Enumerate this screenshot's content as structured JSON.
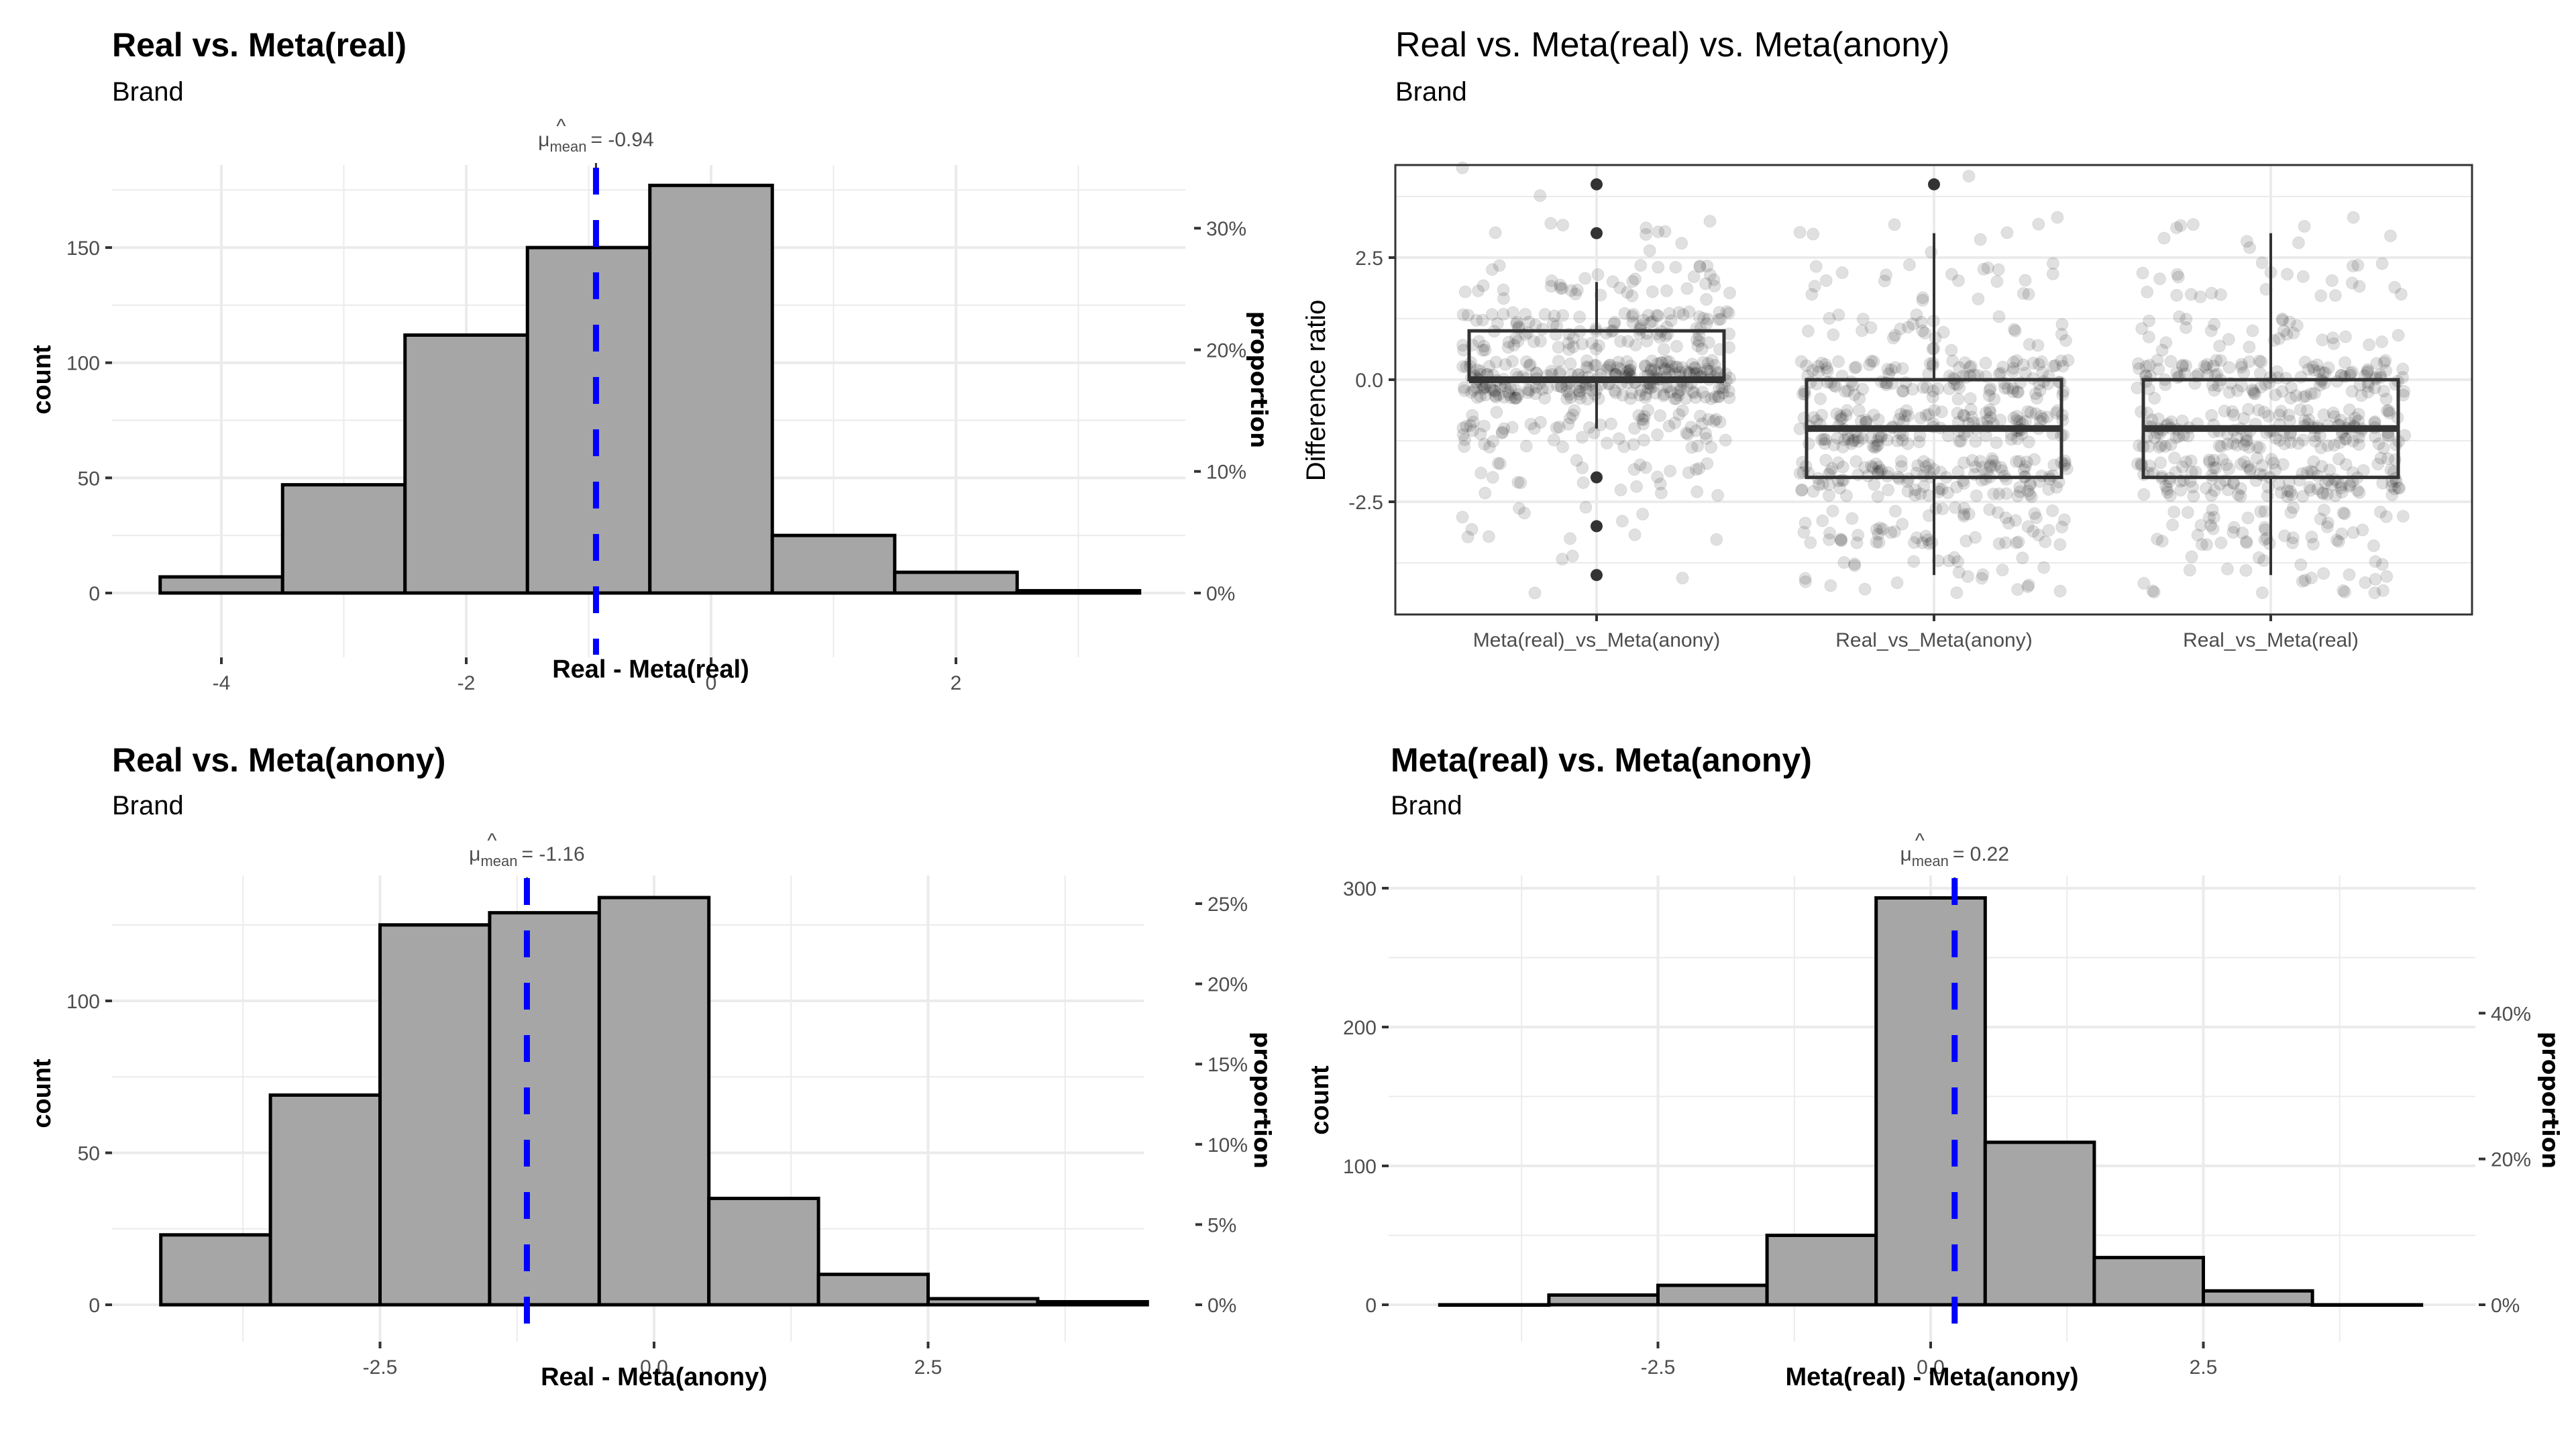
{
  "colors": {
    "bar_fill": "#a6a6a6",
    "bar_outline": "#000000",
    "mean_line": "#0000ff",
    "grid": "#ebebeb",
    "text_muted": "#4d4d4d",
    "point": "#000000"
  },
  "chart_data": [
    {
      "id": "hist-real-vs-meta-real",
      "type": "bar",
      "title": "Real vs. Meta(real)",
      "subtitle": "Brand",
      "xlabel": "Real - Meta(real)",
      "ylabel": "count",
      "ylabel_secondary": "proportion",
      "bin_centers": [
        -4,
        -3,
        -2,
        -1,
        0,
        1,
        2,
        3
      ],
      "values": [
        7,
        47,
        112,
        150,
        177,
        25,
        9,
        1
      ],
      "bin_width": 1,
      "xlim": [
        -4.9,
        3.9
      ],
      "ylim": [
        0,
        185
      ],
      "x_ticks": [
        -4,
        -2,
        0,
        2
      ],
      "x_tick_labels": [
        "-4",
        "-2",
        "0",
        "2"
      ],
      "y_ticks": [
        0,
        50,
        100,
        150
      ],
      "y_tick_labels": [
        "0",
        "50",
        "100",
        "150"
      ],
      "y2_ticks": [
        0,
        0.1,
        0.2,
        0.3
      ],
      "y2_tick_labels": [
        "0%",
        "10%",
        "20%",
        "30%"
      ],
      "mean": -0.94,
      "mean_label_value": "= -0.94",
      "mean_label_symbol": "μ",
      "mean_label_sub": "mean",
      "grid": true
    },
    {
      "id": "boxplot-difference-ratio",
      "type": "box",
      "title": "Real vs. Meta(real) vs. Meta(anony)",
      "subtitle": "Brand",
      "xlabel": "",
      "ylabel": "Difference ratio",
      "categories": [
        "Meta(real)_vs_Meta(anony)",
        "Real_vs_Meta(anony)",
        "Real_vs_Meta(real)"
      ],
      "boxes": [
        {
          "q1": 0,
          "median": 0,
          "q3": 1,
          "whisker_low": -1,
          "whisker_high": 2,
          "outliers": [
            4,
            3,
            -2,
            -3,
            -4
          ]
        },
        {
          "q1": -2,
          "median": -1,
          "q3": 0,
          "whisker_low": -4,
          "whisker_high": 3,
          "outliers": [
            4
          ]
        },
        {
          "q1": -2,
          "median": -1,
          "q3": 0,
          "whisker_low": -4,
          "whisker_high": 3,
          "outliers": []
        }
      ],
      "jitter_points": "semi-transparent jittered points per group (approx. 528 each)",
      "ylim": [
        -4.6,
        4.5
      ],
      "y_ticks": [
        -2.5,
        0.0,
        2.5
      ],
      "y_tick_labels": [
        "-2.5",
        "0.0",
        "2.5"
      ],
      "grid": true
    },
    {
      "id": "hist-real-vs-meta-anony",
      "type": "bar",
      "title": "Real vs. Meta(anony)",
      "subtitle": "Brand",
      "xlabel": "Real - Meta(anony)",
      "ylabel": "count",
      "ylabel_secondary": "proportion",
      "bin_centers": [
        -4,
        -3,
        -2,
        -1,
        0,
        1,
        2,
        3,
        4
      ],
      "values": [
        23,
        69,
        125,
        129,
        134,
        35,
        10,
        2,
        1
      ],
      "bin_width": 1,
      "xlim": [
        -4.9,
        4.9
      ],
      "ylim": [
        0,
        142
      ],
      "x_ticks": [
        -2.5,
        0.0,
        2.5
      ],
      "x_tick_labels": [
        "-2.5",
        "0.0",
        "2.5"
      ],
      "y_ticks": [
        0,
        50,
        100
      ],
      "y_tick_labels": [
        "0",
        "50",
        "100"
      ],
      "y2_ticks": [
        0,
        0.05,
        0.1,
        0.15,
        0.2,
        0.25
      ],
      "y2_tick_labels": [
        "0%",
        "5%",
        "10%",
        "15%",
        "20%",
        "25%"
      ],
      "mean": -1.16,
      "mean_label_value": "= -1.16",
      "mean_label_symbol": "μ",
      "mean_label_sub": "mean",
      "grid": true
    },
    {
      "id": "hist-meta-real-vs-meta-anony",
      "type": "bar",
      "title": "Meta(real) vs. Meta(anony)",
      "subtitle": "Brand",
      "xlabel": "Meta(real) - Meta(anony)",
      "ylabel": "count",
      "ylabel_secondary": "proportion",
      "bin_centers": [
        -4,
        -3,
        -2,
        -1,
        0,
        1,
        2,
        3,
        4
      ],
      "values": [
        0,
        7,
        14,
        50,
        293,
        117,
        34,
        10,
        0
      ],
      "bin_width": 1,
      "xlim": [
        -4.9,
        4.9
      ],
      "ylim": [
        0,
        305
      ],
      "x_ticks": [
        -2.5,
        0.0,
        2.5
      ],
      "x_tick_labels": [
        "-2.5",
        "0.0",
        "2.5"
      ],
      "y_ticks": [
        0,
        100,
        200,
        300
      ],
      "y_tick_labels": [
        "0",
        "100",
        "200",
        "300"
      ],
      "y2_ticks": [
        0,
        0.2,
        0.4
      ],
      "y2_tick_labels": [
        "0%",
        "20%",
        "40%"
      ],
      "mean": 0.22,
      "mean_label_value": "= 0.22",
      "mean_label_symbol": "μ",
      "mean_label_sub": "mean",
      "grid": true
    }
  ]
}
